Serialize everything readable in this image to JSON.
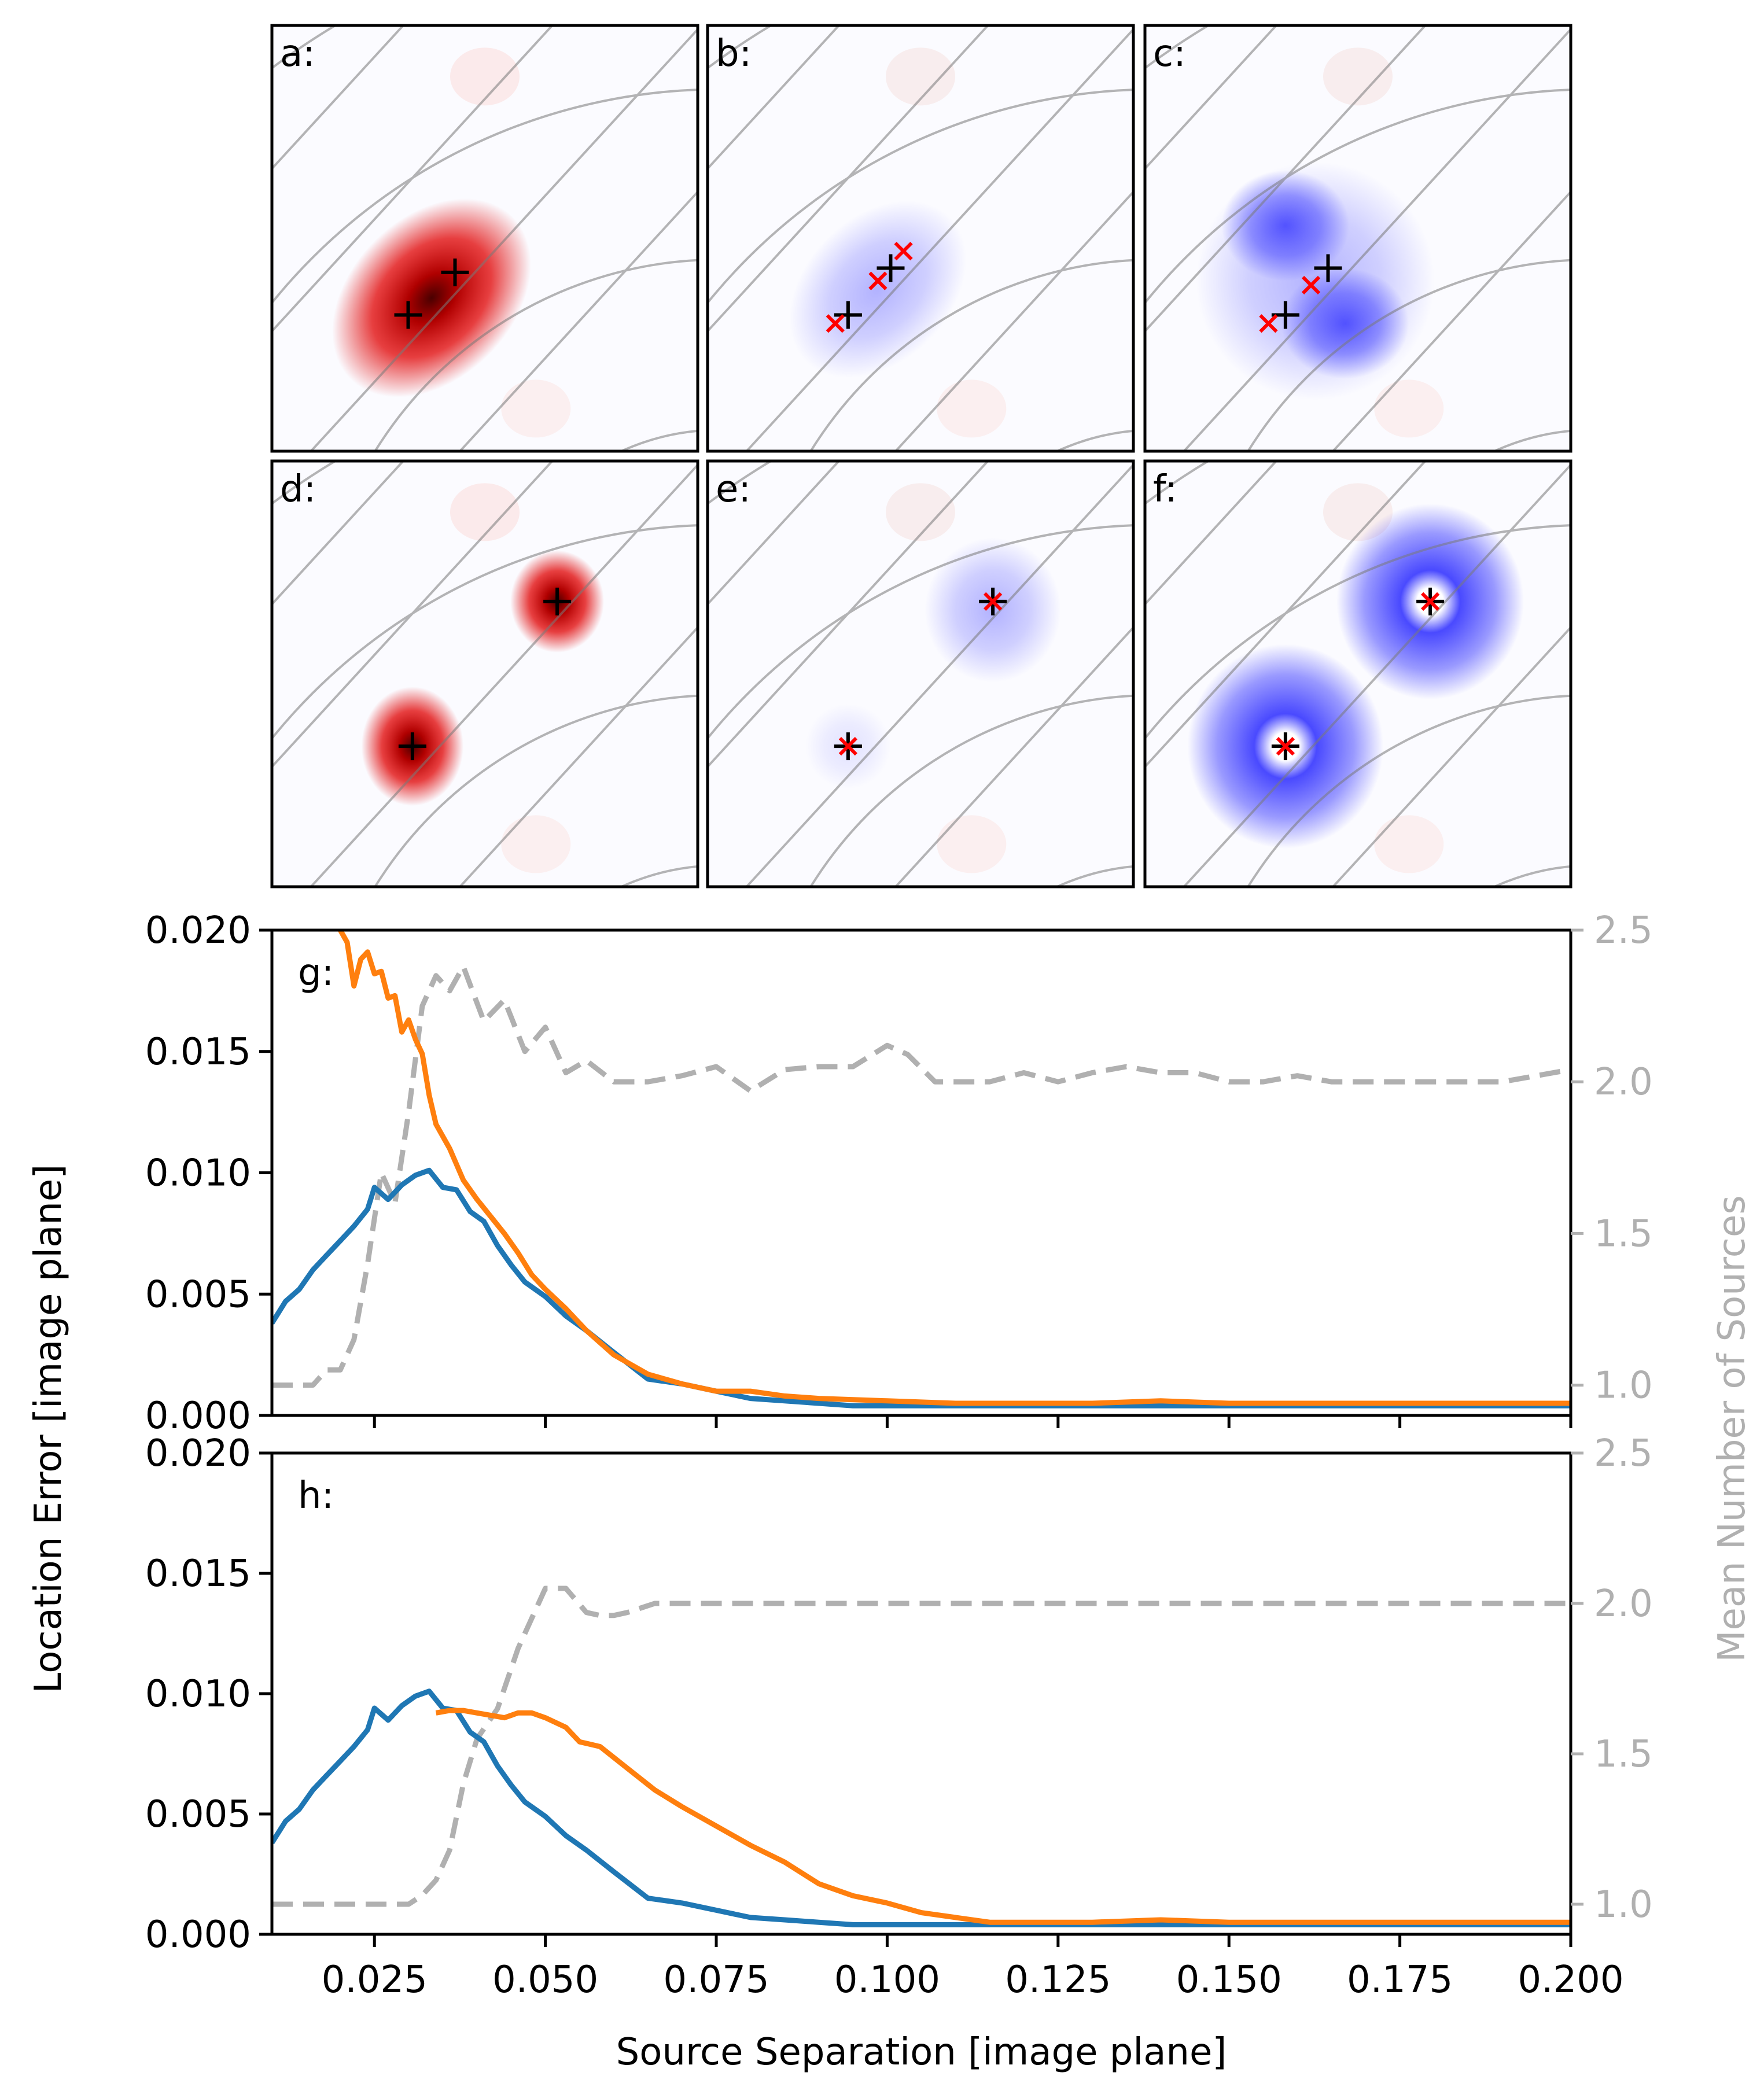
{
  "colors": {
    "blue": "#1f77b4",
    "orange": "#ff7f0e",
    "gray": "#b0b0b0",
    "red_blob": "#e00000",
    "blue_blob": "#2a2aff",
    "marker_x": "#ff0000",
    "grid": "#7a7a7a"
  },
  "panels": [
    {
      "label": "a:",
      "color": "red",
      "true": [
        [
          0.32,
          0.68
        ],
        [
          0.43,
          0.58
        ]
      ],
      "est": [],
      "blobs": [
        {
          "c": [
            0.375,
            0.64
          ],
          "rx": 0.19,
          "ry": 0.27,
          "angle": 45,
          "i": 1.0
        }
      ]
    },
    {
      "label": "b:",
      "color": "blue",
      "true": [
        [
          0.33,
          0.68
        ],
        [
          0.43,
          0.57
        ]
      ],
      "est": [
        [
          0.3,
          0.7
        ],
        [
          0.4,
          0.6
        ],
        [
          0.46,
          0.53
        ]
      ],
      "blobs": [
        {
          "c": [
            0.4,
            0.62
          ],
          "rx": 0.17,
          "ry": 0.24,
          "angle": 45,
          "i": 0.35
        }
      ]
    },
    {
      "label": "c:",
      "color": "blue",
      "true": [
        [
          0.33,
          0.68
        ],
        [
          0.43,
          0.57
        ]
      ],
      "est": [
        [
          0.29,
          0.7
        ],
        [
          0.39,
          0.61
        ]
      ],
      "blobs": [
        {
          "c": [
            0.33,
            0.47
          ],
          "rx": 0.15,
          "ry": 0.13,
          "angle": 0,
          "i": 0.75
        },
        {
          "c": [
            0.47,
            0.7
          ],
          "rx": 0.15,
          "ry": 0.13,
          "angle": 0,
          "i": 0.75
        },
        {
          "c": [
            0.4,
            0.6
          ],
          "rx": 0.28,
          "ry": 0.28,
          "angle": 0,
          "i": 0.35
        }
      ]
    },
    {
      "label": "d:",
      "color": "red",
      "true": [
        [
          0.33,
          0.67
        ],
        [
          0.67,
          0.33
        ]
      ],
      "est": [],
      "blobs": [
        {
          "c": [
            0.33,
            0.67
          ],
          "rx": 0.12,
          "ry": 0.14,
          "angle": 0,
          "i": 1.0
        },
        {
          "c": [
            0.67,
            0.33
          ],
          "rx": 0.11,
          "ry": 0.12,
          "angle": 0,
          "i": 1.0
        }
      ]
    },
    {
      "label": "e:",
      "color": "blue",
      "true": [
        [
          0.33,
          0.67
        ],
        [
          0.67,
          0.33
        ]
      ],
      "est": [
        [
          0.33,
          0.67
        ],
        [
          0.67,
          0.33
        ]
      ],
      "blobs": [
        {
          "c": [
            0.67,
            0.35
          ],
          "rx": 0.16,
          "ry": 0.17,
          "angle": 0,
          "i": 0.35
        },
        {
          "c": [
            0.33,
            0.67
          ],
          "rx": 0.1,
          "ry": 0.1,
          "angle": 0,
          "i": 0.12
        }
      ]
    },
    {
      "label": "f:",
      "color": "blue",
      "true": [
        [
          0.33,
          0.67
        ],
        [
          0.67,
          0.33
        ]
      ],
      "est": [
        [
          0.33,
          0.67
        ],
        [
          0.67,
          0.33
        ]
      ],
      "blobs": [
        {
          "c": [
            0.33,
            0.67
          ],
          "rx": 0.23,
          "ry": 0.24,
          "angle": 0,
          "i": 0.85,
          "ring": true
        },
        {
          "c": [
            0.67,
            0.33
          ],
          "rx": 0.22,
          "ry": 0.23,
          "angle": 0,
          "i": 0.85,
          "ring": true
        }
      ]
    }
  ],
  "chart_data": [
    {
      "type": "line",
      "panel_label": "g:",
      "xlim": [
        0.01,
        0.2
      ],
      "ylim_left": [
        0.0,
        0.02
      ],
      "ylim_right": [
        0.9,
        2.5
      ],
      "series": [
        {
          "name": "blue",
          "axis": "left",
          "color": "#1f77b4",
          "x": [
            0.01,
            0.012,
            0.014,
            0.016,
            0.018,
            0.02,
            0.022,
            0.024,
            0.025,
            0.027,
            0.029,
            0.031,
            0.033,
            0.035,
            0.037,
            0.039,
            0.041,
            0.043,
            0.045,
            0.047,
            0.05,
            0.053,
            0.056,
            0.06,
            0.065,
            0.07,
            0.075,
            0.08,
            0.085,
            0.09,
            0.095,
            0.1,
            0.11,
            0.12,
            0.13,
            0.14,
            0.15,
            0.16,
            0.17,
            0.18,
            0.19,
            0.2
          ],
          "y": [
            0.0038,
            0.0047,
            0.0052,
            0.006,
            0.0066,
            0.0072,
            0.0078,
            0.0085,
            0.0094,
            0.0089,
            0.0095,
            0.0099,
            0.0101,
            0.0094,
            0.0093,
            0.0084,
            0.008,
            0.007,
            0.0062,
            0.0055,
            0.0049,
            0.0041,
            0.0035,
            0.0026,
            0.0015,
            0.0013,
            0.001,
            0.0007,
            0.0006,
            0.0005,
            0.0004,
            0.0004,
            0.0004,
            0.0004,
            0.0004,
            0.0004,
            0.0004,
            0.0004,
            0.0004,
            0.0004,
            0.0004,
            0.0004
          ]
        },
        {
          "name": "orange",
          "axis": "left",
          "color": "#ff7f0e",
          "x": [
            0.02,
            0.021,
            0.022,
            0.023,
            0.024,
            0.025,
            0.026,
            0.027,
            0.028,
            0.029,
            0.03,
            0.031,
            0.032,
            0.033,
            0.034,
            0.036,
            0.038,
            0.04,
            0.042,
            0.044,
            0.046,
            0.048,
            0.05,
            0.053,
            0.056,
            0.06,
            0.065,
            0.07,
            0.075,
            0.08,
            0.085,
            0.09,
            0.1,
            0.11,
            0.12,
            0.13,
            0.14,
            0.15,
            0.16,
            0.17,
            0.18,
            0.19,
            0.2
          ],
          "y": [
            0.02,
            0.0195,
            0.0177,
            0.0188,
            0.0191,
            0.0182,
            0.0183,
            0.0172,
            0.0173,
            0.0158,
            0.0163,
            0.0155,
            0.0149,
            0.0132,
            0.012,
            0.011,
            0.0097,
            0.0089,
            0.0082,
            0.0075,
            0.0067,
            0.0058,
            0.0052,
            0.0044,
            0.0035,
            0.0025,
            0.0017,
            0.0013,
            0.001,
            0.001,
            0.0008,
            0.0007,
            0.0006,
            0.0005,
            0.0005,
            0.0005,
            0.0006,
            0.0005,
            0.0005,
            0.0005,
            0.0005,
            0.0005,
            0.0005
          ]
        },
        {
          "name": "gray",
          "axis": "right",
          "color": "#b0b0b0",
          "dashed": true,
          "x": [
            0.01,
            0.014,
            0.016,
            0.018,
            0.02,
            0.022,
            0.024,
            0.026,
            0.028,
            0.03,
            0.032,
            0.034,
            0.036,
            0.038,
            0.041,
            0.044,
            0.047,
            0.05,
            0.053,
            0.056,
            0.06,
            0.065,
            0.07,
            0.075,
            0.08,
            0.085,
            0.09,
            0.095,
            0.1,
            0.103,
            0.107,
            0.11,
            0.115,
            0.12,
            0.125,
            0.13,
            0.135,
            0.14,
            0.145,
            0.15,
            0.155,
            0.16,
            0.165,
            0.17,
            0.175,
            0.18,
            0.185,
            0.19,
            0.195,
            0.2
          ],
          "y": [
            1.0,
            1.0,
            1.0,
            1.05,
            1.05,
            1.15,
            1.4,
            1.7,
            1.6,
            1.9,
            2.25,
            2.35,
            2.3,
            2.38,
            2.2,
            2.27,
            2.1,
            2.18,
            2.03,
            2.07,
            2.0,
            2.0,
            2.02,
            2.05,
            1.97,
            2.04,
            2.05,
            2.05,
            2.12,
            2.09,
            2.0,
            2.0,
            2.0,
            2.03,
            2.0,
            2.03,
            2.05,
            2.03,
            2.03,
            2.0,
            2.0,
            2.02,
            2.0,
            2.0,
            2.0,
            2.0,
            2.0,
            2.0,
            2.02,
            2.04
          ]
        }
      ]
    },
    {
      "type": "line",
      "panel_label": "h:",
      "xlim": [
        0.01,
        0.2
      ],
      "ylim_left": [
        0.0,
        0.02
      ],
      "ylim_right": [
        0.9,
        2.5
      ],
      "xlabel": "Source Separation [image plane]",
      "ylabel": "Location Error [image plane]",
      "ylabel_right": "Mean Number of Sources",
      "xticks": [
        "0.025",
        "0.050",
        "0.075",
        "0.100",
        "0.125",
        "0.150",
        "0.175",
        "0.200"
      ],
      "yticks_left": [
        "0.000",
        "0.005",
        "0.010",
        "0.015",
        "0.020"
      ],
      "yticks_right": [
        "1.0",
        "1.5",
        "2.0",
        "2.5"
      ],
      "series": [
        {
          "name": "blue",
          "axis": "left",
          "color": "#1f77b4",
          "x": [
            0.01,
            0.012,
            0.014,
            0.016,
            0.018,
            0.02,
            0.022,
            0.024,
            0.025,
            0.027,
            0.029,
            0.031,
            0.033,
            0.035,
            0.037,
            0.039,
            0.041,
            0.043,
            0.045,
            0.047,
            0.05,
            0.053,
            0.056,
            0.06,
            0.065,
            0.07,
            0.075,
            0.08,
            0.085,
            0.09,
            0.095,
            0.1,
            0.11,
            0.12,
            0.13,
            0.14,
            0.15,
            0.16,
            0.17,
            0.18,
            0.19,
            0.2
          ],
          "y": [
            0.0038,
            0.0047,
            0.0052,
            0.006,
            0.0066,
            0.0072,
            0.0078,
            0.0085,
            0.0094,
            0.0089,
            0.0095,
            0.0099,
            0.0101,
            0.0094,
            0.0093,
            0.0084,
            0.008,
            0.007,
            0.0062,
            0.0055,
            0.0049,
            0.0041,
            0.0035,
            0.0026,
            0.0015,
            0.0013,
            0.001,
            0.0007,
            0.0006,
            0.0005,
            0.0004,
            0.0004,
            0.0004,
            0.0004,
            0.0004,
            0.0004,
            0.0004,
            0.0004,
            0.0004,
            0.0004,
            0.0004,
            0.0004
          ]
        },
        {
          "name": "orange",
          "axis": "left",
          "color": "#ff7f0e",
          "x": [
            0.034,
            0.036,
            0.038,
            0.04,
            0.042,
            0.044,
            0.046,
            0.048,
            0.05,
            0.053,
            0.055,
            0.058,
            0.062,
            0.066,
            0.07,
            0.075,
            0.08,
            0.085,
            0.09,
            0.095,
            0.1,
            0.105,
            0.11,
            0.115,
            0.12,
            0.13,
            0.14,
            0.15,
            0.16,
            0.17,
            0.18,
            0.19,
            0.2
          ],
          "y": [
            0.0092,
            0.0093,
            0.0093,
            0.0092,
            0.0091,
            0.009,
            0.0092,
            0.0092,
            0.009,
            0.0086,
            0.008,
            0.0078,
            0.0069,
            0.006,
            0.0053,
            0.0045,
            0.0037,
            0.003,
            0.0021,
            0.0016,
            0.0013,
            0.0009,
            0.0007,
            0.0005,
            0.0005,
            0.0005,
            0.0006,
            0.0005,
            0.0005,
            0.0005,
            0.0005,
            0.0005,
            0.0005
          ]
        },
        {
          "name": "gray",
          "axis": "right",
          "color": "#b0b0b0",
          "dashed": true,
          "x": [
            0.01,
            0.02,
            0.03,
            0.032,
            0.034,
            0.036,
            0.038,
            0.04,
            0.043,
            0.046,
            0.05,
            0.053,
            0.056,
            0.058,
            0.06,
            0.062,
            0.066,
            0.07,
            0.08,
            0.1,
            0.13,
            0.16,
            0.2
          ],
          "y": [
            1.0,
            1.0,
            1.0,
            1.03,
            1.08,
            1.18,
            1.4,
            1.55,
            1.65,
            1.85,
            2.05,
            2.05,
            1.97,
            1.96,
            1.96,
            1.97,
            2.0,
            2.0,
            2.0,
            2.0,
            2.0,
            2.0,
            2.0
          ]
        }
      ]
    }
  ]
}
